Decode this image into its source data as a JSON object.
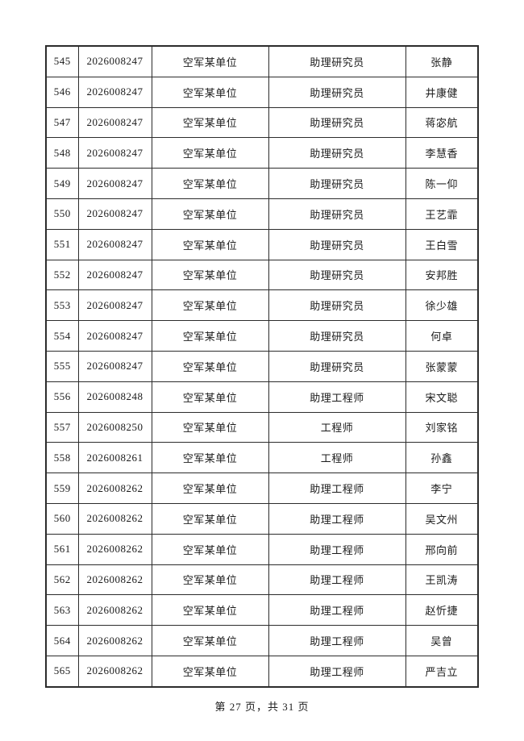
{
  "colors": {
    "background": "#ffffff",
    "border": "#2c2c2c",
    "text": "#1b1b1b"
  },
  "table": {
    "column_keys": [
      "index",
      "code",
      "unit",
      "title",
      "name"
    ],
    "rows": [
      {
        "index": "545",
        "code": "2026008247",
        "unit": "空军某单位",
        "title": "助理研究员",
        "name": "张静"
      },
      {
        "index": "546",
        "code": "2026008247",
        "unit": "空军某单位",
        "title": "助理研究员",
        "name": "井康健"
      },
      {
        "index": "547",
        "code": "2026008247",
        "unit": "空军某单位",
        "title": "助理研究员",
        "name": "蒋宓航"
      },
      {
        "index": "548",
        "code": "2026008247",
        "unit": "空军某单位",
        "title": "助理研究员",
        "name": "李慧香"
      },
      {
        "index": "549",
        "code": "2026008247",
        "unit": "空军某单位",
        "title": "助理研究员",
        "name": "陈一仰"
      },
      {
        "index": "550",
        "code": "2026008247",
        "unit": "空军某单位",
        "title": "助理研究员",
        "name": "王艺霏"
      },
      {
        "index": "551",
        "code": "2026008247",
        "unit": "空军某单位",
        "title": "助理研究员",
        "name": "王白雪"
      },
      {
        "index": "552",
        "code": "2026008247",
        "unit": "空军某单位",
        "title": "助理研究员",
        "name": "安邦胜"
      },
      {
        "index": "553",
        "code": "2026008247",
        "unit": "空军某单位",
        "title": "助理研究员",
        "name": "徐少雄"
      },
      {
        "index": "554",
        "code": "2026008247",
        "unit": "空军某单位",
        "title": "助理研究员",
        "name": "何卓"
      },
      {
        "index": "555",
        "code": "2026008247",
        "unit": "空军某单位",
        "title": "助理研究员",
        "name": "张蒙蒙"
      },
      {
        "index": "556",
        "code": "2026008248",
        "unit": "空军某单位",
        "title": "助理工程师",
        "name": "宋文聪"
      },
      {
        "index": "557",
        "code": "2026008250",
        "unit": "空军某单位",
        "title": "工程师",
        "name": "刘家铭"
      },
      {
        "index": "558",
        "code": "2026008261",
        "unit": "空军某单位",
        "title": "工程师",
        "name": "孙鑫"
      },
      {
        "index": "559",
        "code": "2026008262",
        "unit": "空军某单位",
        "title": "助理工程师",
        "name": "李宁"
      },
      {
        "index": "560",
        "code": "2026008262",
        "unit": "空军某单位",
        "title": "助理工程师",
        "name": "吴文州"
      },
      {
        "index": "561",
        "code": "2026008262",
        "unit": "空军某单位",
        "title": "助理工程师",
        "name": "邢向前"
      },
      {
        "index": "562",
        "code": "2026008262",
        "unit": "空军某单位",
        "title": "助理工程师",
        "name": "王凯涛"
      },
      {
        "index": "563",
        "code": "2026008262",
        "unit": "空军某单位",
        "title": "助理工程师",
        "name": "赵忻捷"
      },
      {
        "index": "564",
        "code": "2026008262",
        "unit": "空军某单位",
        "title": "助理工程师",
        "name": "吴曾"
      },
      {
        "index": "565",
        "code": "2026008262",
        "unit": "空军某单位",
        "title": "助理工程师",
        "name": "严吉立"
      }
    ]
  },
  "footer": {
    "page_info": "第 27 页，共 31 页"
  }
}
